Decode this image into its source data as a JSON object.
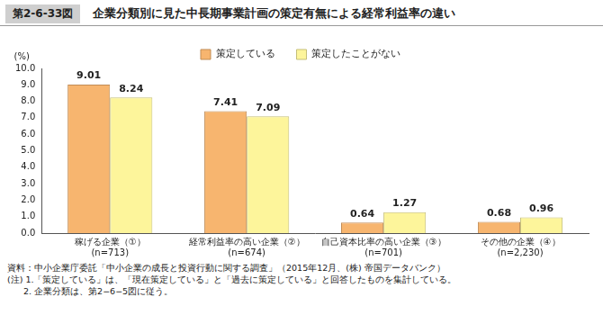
{
  "chart_data": {
    "type": "bar",
    "figure_number": "第2-6-33図",
    "title": "企業分類別に見た中長期事業計画の策定有無による経常利益率の違い",
    "ylabel": "(%)",
    "categories": [
      [
        "稼げる企業（①）",
        "(n=713)"
      ],
      [
        "経常利益率の高い企業（②）",
        "(n=674)"
      ],
      [
        "自己資本比率の高い企業（③）",
        "(n=701)"
      ],
      [
        "その他の企業（④）",
        "(n=2,230)"
      ]
    ],
    "series": [
      {
        "name": "策定している",
        "color": "#f7b56f",
        "values": [
          9.01,
          7.41,
          0.64,
          0.68
        ]
      },
      {
        "name": "策定したことがない",
        "color": "#fdf59b",
        "values": [
          8.24,
          7.09,
          1.27,
          0.96
        ]
      }
    ],
    "ylim": [
      0,
      10
    ],
    "yticks": [
      {
        "value": 0,
        "label": "0.0"
      },
      {
        "value": 1,
        "label": "1.0"
      },
      {
        "value": 2,
        "label": "2.0"
      },
      {
        "value": 3,
        "label": "3.0"
      },
      {
        "value": 4,
        "label": "4.0"
      },
      {
        "value": 5,
        "label": "5.0"
      },
      {
        "value": 6,
        "label": "6.0"
      },
      {
        "value": 7,
        "label": "7.0"
      },
      {
        "value": 8,
        "label": "8.0"
      },
      {
        "value": 9,
        "label": "9.0"
      },
      {
        "value": 10,
        "label": "10.0"
      }
    ],
    "grid": false,
    "legend": "top",
    "data_labels": true,
    "notes": [
      "資料：中小企業庁委託「中小企業の成長と投資行動に関する調査」（2015年12月、(株) 帝国データバンク）",
      "(注) 1.「策定している」は、「現在策定している」と「過去に策定している」と回答したものを集計している。",
      "2. 企業分類は、第2−6−5図に従う。"
    ]
  }
}
